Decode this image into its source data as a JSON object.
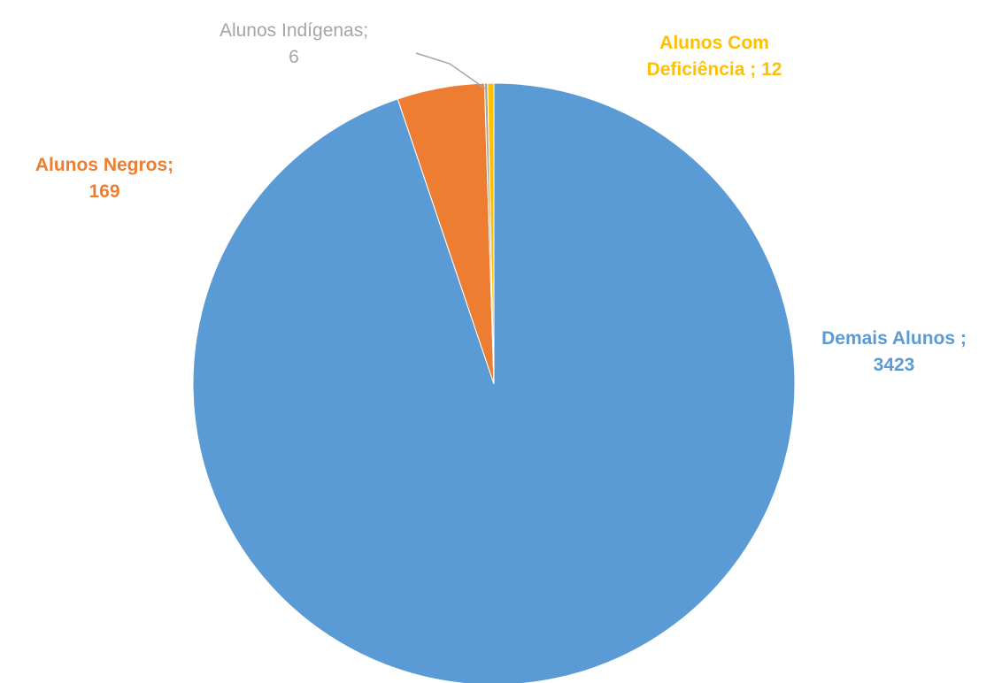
{
  "chart_data": {
    "type": "pie",
    "start_angle_deg": 0,
    "direction": "clockwise",
    "slices": [
      {
        "label_line1": "Demais Alunos ;",
        "label_line2": "3423",
        "value": 3423,
        "color": "#5b9bd5"
      },
      {
        "label_line1": "Alunos Negros;",
        "label_line2": "169",
        "value": 169,
        "color": "#ed7d31"
      },
      {
        "label_line1": "Alunos  Indígenas;",
        "label_line2": "6",
        "value": 6,
        "color": "#a5a5a5"
      },
      {
        "label_line1": "Alunos Com",
        "label_line2": "Deficiência  ; 12",
        "value": 12,
        "color": "#ffc000"
      }
    ]
  }
}
